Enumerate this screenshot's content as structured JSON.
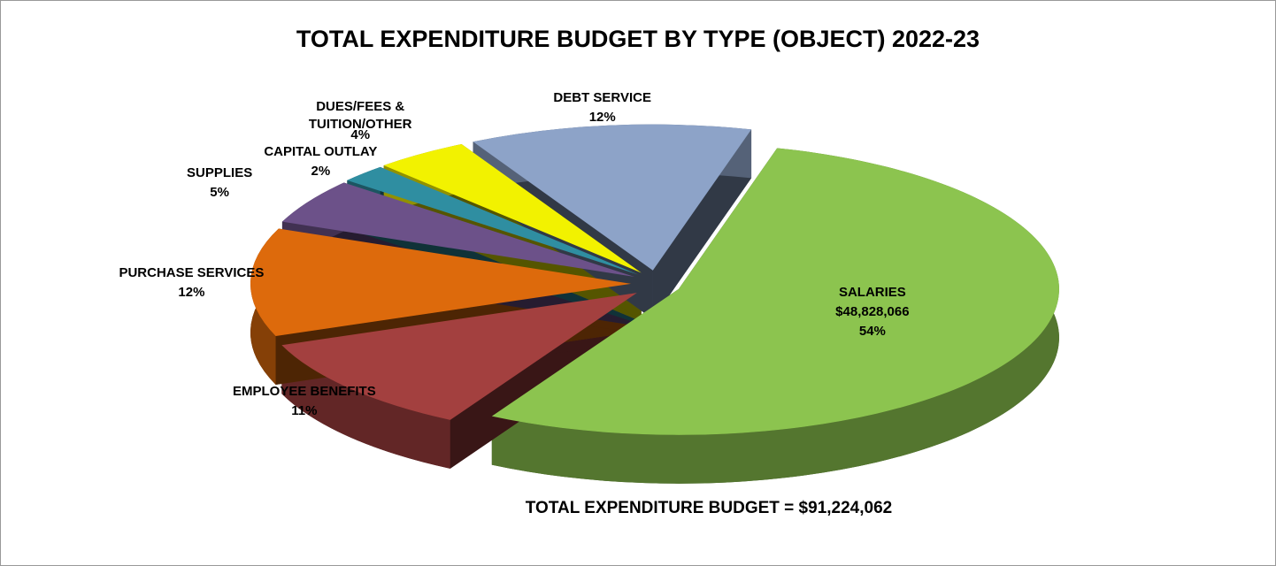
{
  "chart_data": {
    "type": "pie",
    "title": "TOTAL EXPENDITURE BUDGET BY TYPE (OBJECT) 2022-23",
    "categories": [
      "SALARIES",
      "EMPLOYEE BENEFITS",
      "PURCHASE SERVICES",
      "SUPPLIES",
      "CAPITAL OUTLAY",
      "DUES/FEES & TUITION/OTHER",
      "DEBT SERVICE"
    ],
    "values": [
      54,
      11,
      12,
      5,
      2,
      4,
      12
    ],
    "value_labels": [
      "54%",
      "11%",
      "12%",
      "5%",
      "2%",
      "4%",
      "12%"
    ],
    "colors": [
      "#8cc44f",
      "#a3403f",
      "#dd6a0c",
      "#6c5189",
      "#2f8ea1",
      "#f2f200",
      "#8da3c8"
    ],
    "annotations": [
      "$48,828,066",
      "TOTAL EXPENDITURE BUDGET = $91,224,062"
    ]
  }
}
